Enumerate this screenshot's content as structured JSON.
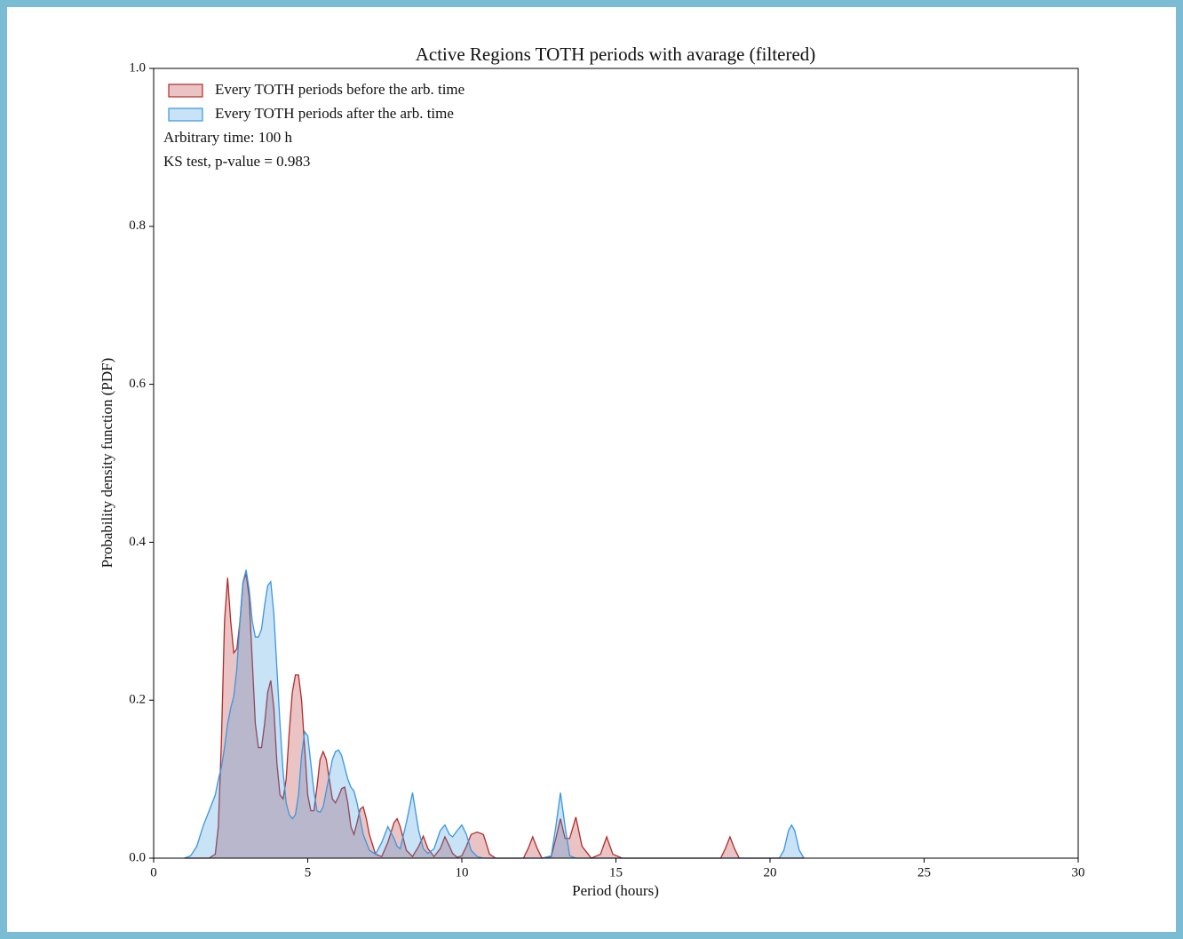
{
  "chart_data": {
    "type": "area",
    "title": "Active Regions TOTH periods with avarage (filtered)",
    "x_label": "Period (hours)",
    "y_label": "Probability density function (PDF)",
    "annotations": [
      "Arbitrary time: 100 h",
      "KS test, p-value = 0.983"
    ],
    "legend_position": "upper left",
    "x": [
      1.0,
      1.2,
      1.4,
      1.6,
      1.8,
      2.0,
      2.1,
      2.2,
      2.3,
      2.4,
      2.5,
      2.6,
      2.7,
      2.8,
      2.9,
      3.0,
      3.1,
      3.2,
      3.3,
      3.4,
      3.5,
      3.6,
      3.7,
      3.8,
      3.9,
      4.0,
      4.1,
      4.2,
      4.3,
      4.4,
      4.5,
      4.6,
      4.7,
      4.8,
      4.9,
      5.0,
      5.1,
      5.2,
      5.3,
      5.4,
      5.5,
      5.6,
      5.7,
      5.8,
      5.9,
      6.0,
      6.1,
      6.2,
      6.3,
      6.4,
      6.5,
      6.6,
      6.7,
      6.8,
      6.9,
      7.0,
      7.2,
      7.4,
      7.6,
      7.8,
      7.9,
      8.0,
      8.2,
      8.4,
      8.6,
      8.75,
      8.9,
      9.1,
      9.3,
      9.45,
      9.6,
      9.7,
      9.85,
      10.0,
      10.15,
      10.3,
      10.5,
      10.7,
      10.9,
      11.1,
      11.5,
      12.0,
      12.15,
      12.3,
      12.45,
      12.6,
      12.9,
      13.05,
      13.2,
      13.35,
      13.5,
      13.7,
      13.9,
      14.2,
      14.5,
      14.7,
      14.9,
      15.2,
      18.4,
      18.55,
      18.7,
      18.85,
      19.0,
      20.3,
      20.45,
      20.6,
      20.7,
      20.8,
      20.95,
      21.1
    ],
    "series": [
      {
        "name": "Every TOTH periods before the arb. time",
        "color": "#b22a2a",
        "values": [
          0,
          0,
          0,
          0,
          0,
          0.005,
          0.04,
          0.15,
          0.3,
          0.355,
          0.3,
          0.26,
          0.265,
          0.3,
          0.35,
          0.36,
          0.33,
          0.25,
          0.17,
          0.14,
          0.14,
          0.17,
          0.21,
          0.225,
          0.19,
          0.12,
          0.08,
          0.075,
          0.1,
          0.16,
          0.21,
          0.232,
          0.232,
          0.2,
          0.14,
          0.08,
          0.06,
          0.06,
          0.09,
          0.125,
          0.135,
          0.125,
          0.1,
          0.075,
          0.07,
          0.078,
          0.088,
          0.09,
          0.07,
          0.04,
          0.03,
          0.045,
          0.062,
          0.065,
          0.05,
          0.03,
          0.005,
          0.002,
          0.02,
          0.045,
          0.05,
          0.04,
          0.01,
          0.002,
          0.015,
          0.028,
          0.012,
          0.002,
          0.012,
          0.027,
          0.015,
          0.006,
          0.001,
          0.003,
          0.015,
          0.03,
          0.033,
          0.03,
          0.005,
          0,
          0,
          0,
          0.012,
          0.027,
          0.012,
          0,
          0.002,
          0.025,
          0.05,
          0.025,
          0.025,
          0.052,
          0.015,
          0,
          0.005,
          0.027,
          0.005,
          0,
          0,
          0.012,
          0.027,
          0.012,
          0,
          0,
          0,
          0,
          0,
          0,
          0,
          0
        ]
      },
      {
        "name": "Every TOTH periods after the arb. time",
        "color": "#3a96e0",
        "values": [
          0,
          0.003,
          0.015,
          0.04,
          0.06,
          0.08,
          0.1,
          0.115,
          0.14,
          0.17,
          0.19,
          0.205,
          0.24,
          0.3,
          0.35,
          0.365,
          0.34,
          0.3,
          0.28,
          0.28,
          0.29,
          0.32,
          0.345,
          0.35,
          0.31,
          0.24,
          0.17,
          0.11,
          0.07,
          0.055,
          0.05,
          0.055,
          0.08,
          0.13,
          0.16,
          0.155,
          0.12,
          0.085,
          0.06,
          0.058,
          0.065,
          0.085,
          0.105,
          0.125,
          0.135,
          0.137,
          0.13,
          0.115,
          0.1,
          0.09,
          0.085,
          0.07,
          0.05,
          0.03,
          0.02,
          0.01,
          0.005,
          0.02,
          0.04,
          0.025,
          0.015,
          0.012,
          0.045,
          0.083,
          0.035,
          0.012,
          0.006,
          0.012,
          0.035,
          0.042,
          0.03,
          0.027,
          0.035,
          0.042,
          0.03,
          0.01,
          0.002,
          0,
          0,
          0,
          0,
          0,
          0,
          0,
          0,
          0,
          0.003,
          0.04,
          0.083,
          0.04,
          0.003,
          0,
          0,
          0,
          0,
          0,
          0,
          0,
          0,
          0,
          0,
          0,
          0,
          0,
          0.01,
          0.035,
          0.042,
          0.035,
          0.01,
          0
        ]
      }
    ],
    "xlim": [
      0,
      30
    ],
    "ylim": [
      0,
      1
    ],
    "xticks": [
      0,
      5,
      10,
      15,
      20,
      25,
      30
    ],
    "yticks": [
      {
        "value": 0,
        "label": "0.0"
      },
      0.2,
      0.4,
      0.6,
      0.8,
      {
        "value": 1,
        "label": "1.0"
      }
    ]
  }
}
